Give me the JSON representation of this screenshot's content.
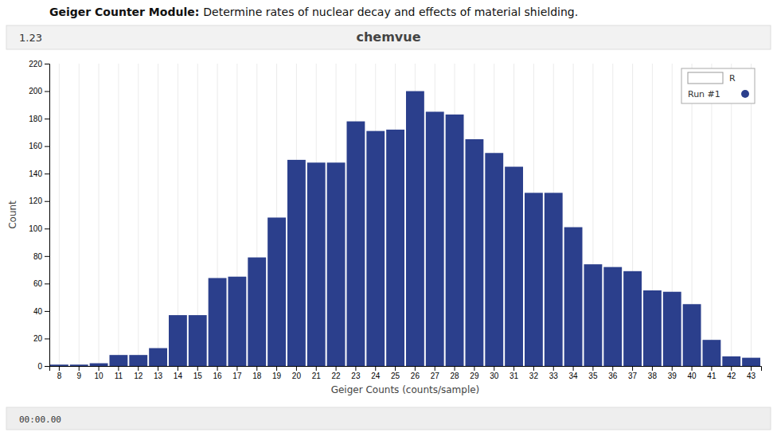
{
  "chart_data": {
    "type": "bar",
    "title": "Geiger Counter Module:",
    "subtitle": "Determine rates of nuclear decay and effects of material shielding.",
    "xlabel": "Geiger Counts (counts/sample)",
    "ylabel": "Count",
    "categories": [
      8,
      9,
      10,
      11,
      12,
      13,
      14,
      15,
      16,
      17,
      18,
      19,
      20,
      21,
      22,
      23,
      24,
      25,
      26,
      27,
      28,
      29,
      30,
      31,
      32,
      33,
      34,
      35,
      36,
      37,
      38,
      39,
      40,
      41,
      42,
      43
    ],
    "series": [
      {
        "name": "Run #1",
        "color": "#2b3f8c",
        "values": [
          1,
          1,
          2,
          8,
          8,
          13,
          37,
          37,
          64,
          65,
          79,
          108,
          150,
          148,
          148,
          178,
          171,
          172,
          200,
          185,
          183,
          165,
          155,
          145,
          126,
          126,
          101,
          74,
          72,
          69,
          55,
          54,
          45,
          19,
          7,
          6
        ]
      }
    ],
    "ylim": [
      0,
      220
    ],
    "yticks": [
      0,
      20,
      40,
      60,
      80,
      100,
      120,
      140,
      160,
      180,
      200,
      220
    ],
    "grid": "x",
    "legend": "upper right",
    "annotations": [
      "chemvue",
      "1.23",
      "00:00.00",
      "R"
    ]
  }
}
